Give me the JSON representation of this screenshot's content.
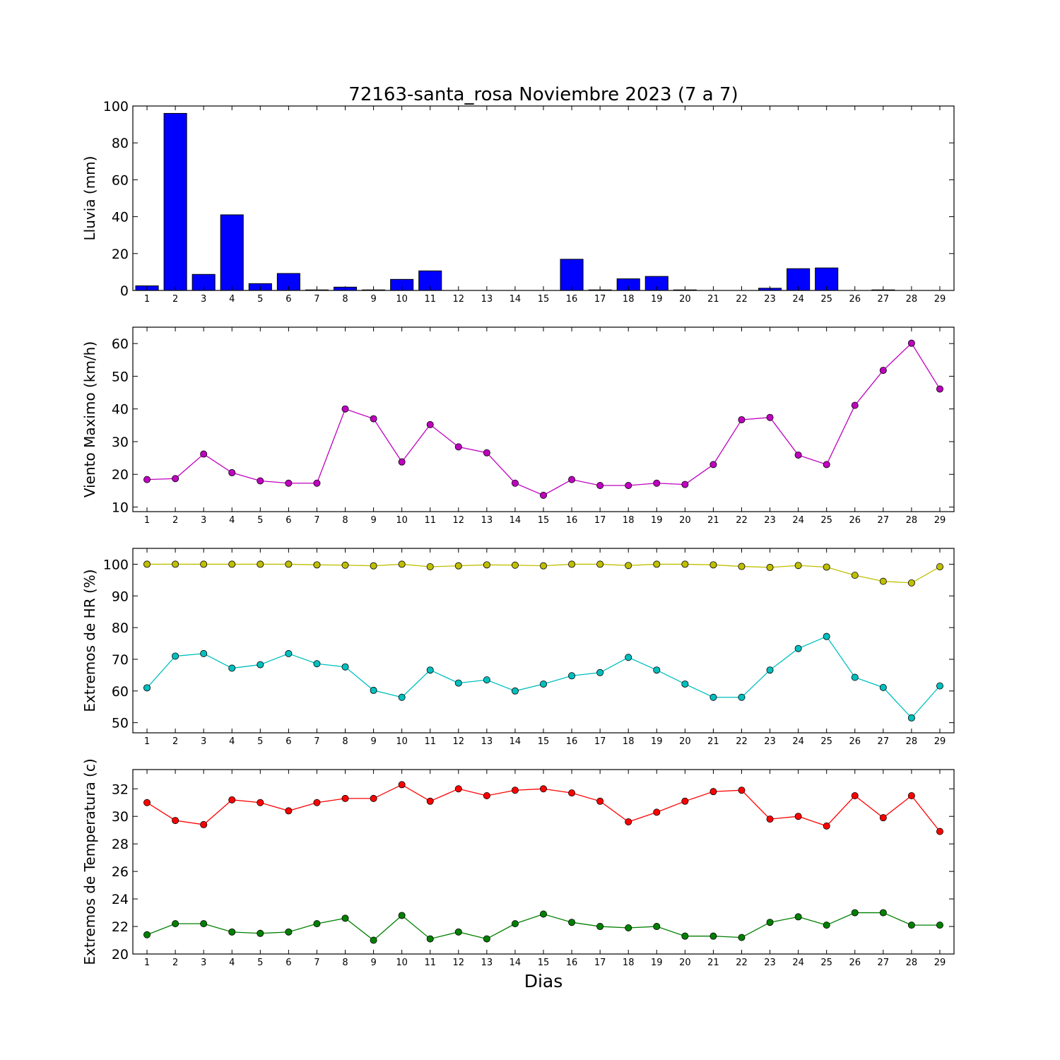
{
  "chart_data": {
    "title": "72163-santa_rosa Noviembre 2023  (7 a 7)",
    "xlabel": "Dias",
    "days": [
      1,
      2,
      3,
      4,
      5,
      6,
      7,
      8,
      9,
      10,
      11,
      12,
      13,
      14,
      15,
      16,
      17,
      18,
      19,
      20,
      21,
      22,
      23,
      24,
      25,
      26,
      27,
      28,
      29
    ],
    "panels": [
      {
        "type": "bar",
        "ylabel": "Lluvia (mm)",
        "ylim": [
          0,
          100
        ],
        "yticks": [
          0,
          20,
          40,
          60,
          80,
          100
        ],
        "series": [
          {
            "color": "#0000ff",
            "values": [
              2.5,
              96,
              8.7,
              41,
              3.7,
              9.2,
              0.3,
              1.8,
              0.3,
              6,
              10.6,
              0,
              0,
              0,
              0,
              16.9,
              0.3,
              6.3,
              7.6,
              0.3,
              0,
              0,
              1.2,
              11.8,
              12.2,
              0,
              0.3,
              0,
              0
            ]
          }
        ]
      },
      {
        "type": "line",
        "ylabel": "Viento Maximo (km/h)",
        "ylim": [
          8.6,
          65
        ],
        "yticks": [
          10,
          20,
          30,
          40,
          50,
          60
        ],
        "series": [
          {
            "color": "#bf00bf",
            "values": [
              18.4,
              18.7,
              26.2,
              20.5,
              18,
              17.3,
              17.3,
              40,
              37,
              23.8,
              35.2,
              28.4,
              26.6,
              17.3,
              13.6,
              18.4,
              16.6,
              16.6,
              17.3,
              16.9,
              23,
              36.7,
              37.4,
              25.9,
              23,
              41.1,
              51.8,
              60.1,
              46.1
            ]
          }
        ]
      },
      {
        "type": "line",
        "ylabel": "Extremos de HR (%)",
        "ylim": [
          46.8,
          105
        ],
        "yticks": [
          50,
          60,
          70,
          80,
          90,
          100
        ],
        "series": [
          {
            "color": "#bfbf00",
            "values": [
              100,
              100,
              100,
              100,
              100,
              100,
              99.8,
              99.7,
              99.5,
              100,
              99.2,
              99.5,
              99.8,
              99.7,
              99.5,
              100,
              100,
              99.6,
              100,
              100,
              99.8,
              99.3,
              99,
              99.6,
              99.1,
              96.5,
              94.6,
              94.1,
              99.2
            ]
          },
          {
            "color": "#00bfbf",
            "values": [
              61,
              71,
              71.8,
              67.2,
              68.3,
              71.8,
              68.6,
              67.6,
              60.2,
              58,
              66.6,
              62.5,
              63.5,
              60,
              62.2,
              64.8,
              65.8,
              70.6,
              66.6,
              62.2,
              58,
              58,
              66.6,
              73.4,
              77.2,
              64.3,
              61.1,
              51.5,
              61.6
            ]
          }
        ]
      },
      {
        "type": "line",
        "ylabel": "Extremos de Temperatura (c)",
        "ylim": [
          20,
          33.4
        ],
        "yticks": [
          20,
          22,
          24,
          26,
          28,
          30,
          32
        ],
        "series": [
          {
            "color": "#ff0000",
            "values": [
              31,
              29.7,
              29.4,
              31.2,
              31,
              30.4,
              31,
              31.3,
              31.3,
              32.3,
              31.1,
              32,
              31.5,
              31.9,
              32,
              31.7,
              31.1,
              29.6,
              30.3,
              31.1,
              31.8,
              31.9,
              29.8,
              30,
              29.3,
              31.5,
              29.9,
              31.5,
              28.9
            ]
          },
          {
            "color": "#008000",
            "values": [
              21.4,
              22.2,
              22.2,
              21.6,
              21.5,
              21.6,
              22.2,
              22.6,
              21,
              22.8,
              21.1,
              21.6,
              21.1,
              22.2,
              22.9,
              22.3,
              22,
              21.9,
              22,
              21.3,
              21.3,
              21.2,
              22.3,
              22.7,
              22.1,
              23,
              23,
              22.1,
              22.1
            ]
          }
        ]
      }
    ]
  }
}
